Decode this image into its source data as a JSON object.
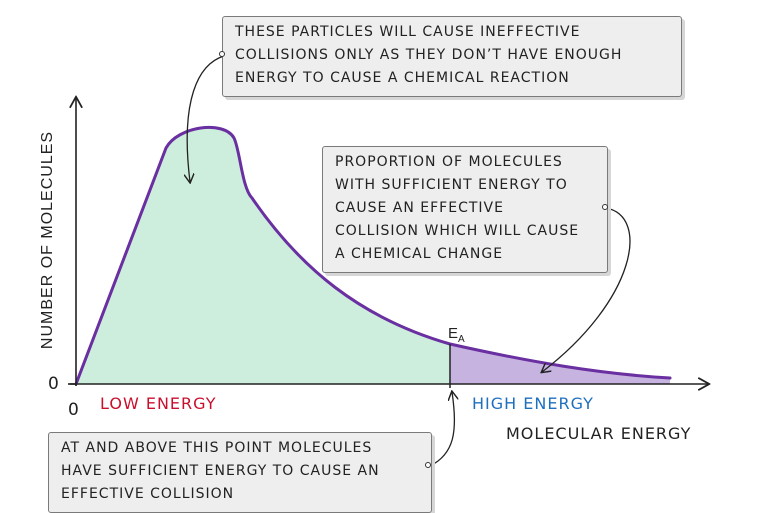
{
  "diagram": {
    "y_axis_label": "NUMBER OF MOLECULES",
    "x_axis_label": "MOLECULAR ENERGY",
    "y_origin_label": "0",
    "x_origin_label": "0",
    "ea_label": {
      "main": "E",
      "sub": "A"
    },
    "low_energy_label": "LOW ENERGY",
    "high_energy_label": "HIGH ENERGY"
  },
  "callouts": {
    "top": [
      "THESE PARTICLES WILL CAUSE INEFFECTIVE",
      "COLLISIONS ONLY AS THEY DON’T HAVE ENOUGH",
      "ENERGY TO CAUSE A CHEMICAL REACTION"
    ],
    "right": [
      "PROPORTION OF MOLECULES",
      "WITH SUFFICIENT ENERGY TO",
      "CAUSE AN EFFECTIVE",
      "COLLISION WHICH WILL CAUSE",
      "A CHEMICAL CHANGE"
    ],
    "bottom": [
      "AT AND ABOVE THIS POINT MOLECULES",
      "HAVE SUFFICIENT ENERGY TO CAUSE AN",
      "EFFECTIVE COLLISION"
    ]
  },
  "colors": {
    "low_fill": "#cdeedd",
    "high_fill": "#c6b3e0",
    "curve": "#6a2fa0",
    "low_text": "#c8102e",
    "high_text": "#1f6fbf",
    "axis": "#222222"
  }
}
